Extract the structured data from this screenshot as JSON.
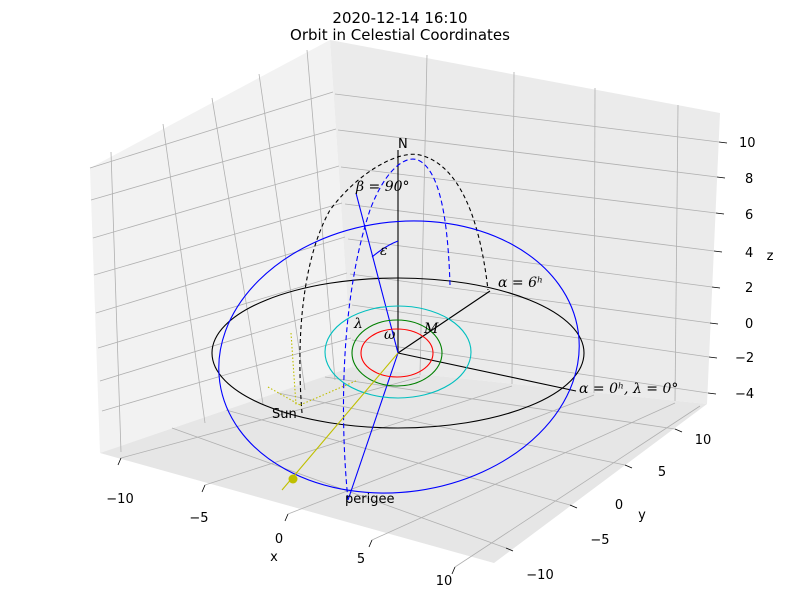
{
  "title_line1": "2020-12-14 16:10",
  "title_line2": "Orbit in Celestial Coordinates",
  "colors": {
    "ecliptic": "#000000",
    "orbit": "#0000ff",
    "sun": "#bfbf00",
    "mercury": "#ff0000",
    "venus": "#008000",
    "earth": "#00bfbf",
    "pane_left": "#f2f2f2",
    "pane_right": "#ebebeb",
    "pane_floor": "#e6e6e6"
  },
  "chart_data": {
    "type": "line3d",
    "xlabel": "x",
    "ylabel": "y",
    "zlabel": "z",
    "xlim": [
      -12,
      12
    ],
    "ylim": [
      -12,
      12
    ],
    "zlim": [
      -4.8,
      11.2
    ],
    "xticks": [
      "−10",
      "−5",
      "0",
      "5",
      "10"
    ],
    "yticks": [
      "−10",
      "−5",
      "0",
      "5",
      "10"
    ],
    "zticks": [
      "−4",
      "−2",
      "0",
      "2",
      "4",
      "6",
      "8",
      "10"
    ],
    "labels": {
      "north": "N",
      "beta90": "β = 90°",
      "epsilon": "ε",
      "lambda": "λ",
      "omega": "ω",
      "M": "M",
      "alpha6": "α = 6ʰ",
      "alpha0": "α = 0ʰ, λ = 0°",
      "sun": "Sun",
      "perigee": "perigee"
    }
  }
}
